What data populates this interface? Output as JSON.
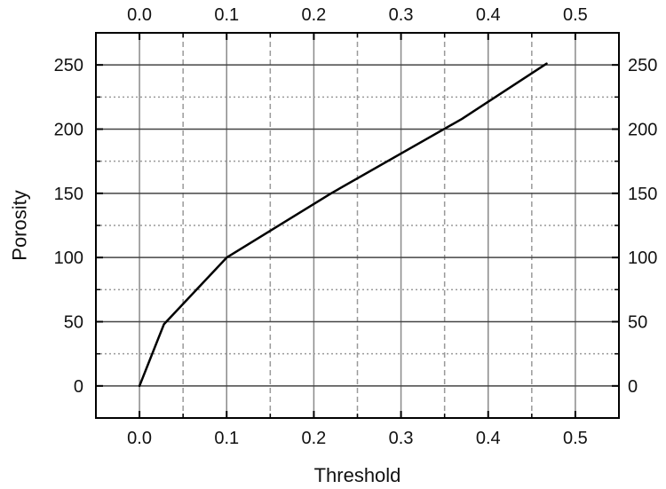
{
  "chart_data": {
    "type": "line",
    "xlabel": "Threshold",
    "ylabel": "Porosity",
    "xlim": [
      -0.05,
      0.55
    ],
    "ylim": [
      -25,
      275
    ],
    "x_ticks": [
      0.0,
      0.1,
      0.2,
      0.3,
      0.4,
      0.5
    ],
    "x_tick_labels": [
      "0.0",
      "0.1",
      "0.2",
      "0.3",
      "0.4",
      "0.5"
    ],
    "x_minor_ticks": [
      0.05,
      0.15,
      0.25,
      0.35,
      0.45
    ],
    "y_ticks": [
      0,
      50,
      100,
      150,
      200,
      250
    ],
    "y_tick_labels": [
      "0",
      "50",
      "100",
      "150",
      "200",
      "250"
    ],
    "y_minor_ticks": [
      25,
      75,
      125,
      175,
      225
    ],
    "grid": true,
    "mirror_axes": true,
    "colors": {
      "line": "#000000",
      "major_grid": "#8a8a8a",
      "minor_grid": "#9a9a9a"
    },
    "series": [
      {
        "x": [
          0.0,
          0.028,
          0.1,
          0.22,
          0.37,
          0.467
        ],
        "y": [
          0,
          48,
          100,
          150,
          208,
          251
        ]
      }
    ]
  }
}
